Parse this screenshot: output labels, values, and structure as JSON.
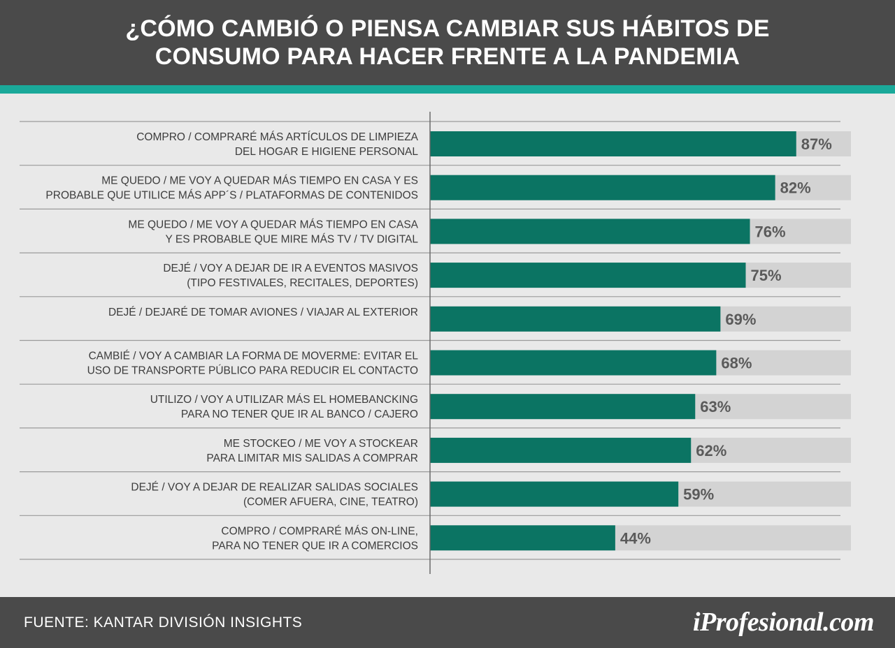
{
  "header": {
    "title_line1": "¿CÓMO CAMBIÓ O PIENSA CAMBIAR SUS HÁBITOS DE",
    "title_line2": "CONSUMO PARA HACER FRENTE A LA PANDEMIA"
  },
  "footer": {
    "source": "FUENTE:  KANTAR DIVISIÓN INSIGHTS",
    "logo": "iProfesional.com"
  },
  "colors": {
    "header_bg": "#4a4a4a",
    "accent": "#1aa99a",
    "bar": "#0b7463",
    "bar_track": "#d3d3d3",
    "value_text": "#5a5a5a",
    "label_text": "#3c3c3c",
    "background": "#e9e9e9"
  },
  "chart_data": {
    "type": "bar",
    "orientation": "horizontal",
    "value_format": "percent",
    "xlim": [
      0,
      100
    ],
    "grid": false,
    "categories": [
      [
        "COMPRO / COMPRARÉ MÁS ARTÍCULOS DE LIMPIEZA",
        "DEL HOGAR E HIGIENE PERSONAL"
      ],
      [
        "ME QUEDO / ME VOY A QUEDAR MÁS TIEMPO EN CASA Y ES",
        "PROBABLE QUE UTILICE MÁS APP´S / PLATAFORMAS DE CONTENIDOS"
      ],
      [
        "ME QUEDO / ME VOY A QUEDAR MÁS TIEMPO EN CASA",
        "Y ES PROBABLE QUE MIRE MÁS TV / TV DIGITAL"
      ],
      [
        "DEJÉ / VOY A DEJAR DE IR A EVENTOS MASIVOS",
        "(TIPO FESTIVALES, RECITALES, DEPORTES)"
      ],
      [
        "DEJÉ / DEJARÉ DE TOMAR AVIONES / VIAJAR AL EXTERIOR"
      ],
      [
        "CAMBIÉ / VOY A CAMBIAR LA FORMA DE MOVERME: EVITAR EL",
        "USO DE TRANSPORTE PÚBLICO PARA REDUCIR EL CONTACTO"
      ],
      [
        "UTILIZO / VOY A UTILIZAR MÁS EL HOMEBANCKING",
        "PARA NO TENER QUE IR AL BANCO / CAJERO"
      ],
      [
        "ME STOCKEO /  ME VOY A STOCKEAR",
        "PARA LIMITAR MIS SALIDAS A COMPRAR"
      ],
      [
        "DEJÉ / VOY A DEJAR DE REALIZAR SALIDAS SOCIALES",
        "(COMER AFUERA, CINE, TEATRO)"
      ],
      [
        "COMPRO / COMPRARÉ MÁS ON-LINE,",
        "PARA NO TENER QUE IR A COMERCIOS"
      ]
    ],
    "values": [
      87,
      82,
      76,
      75,
      69,
      68,
      63,
      62,
      59,
      44
    ],
    "value_labels": [
      "87%",
      "82%",
      "76%",
      "75%",
      "69%",
      "68%",
      "63%",
      "62%",
      "59%",
      "44%"
    ]
  }
}
